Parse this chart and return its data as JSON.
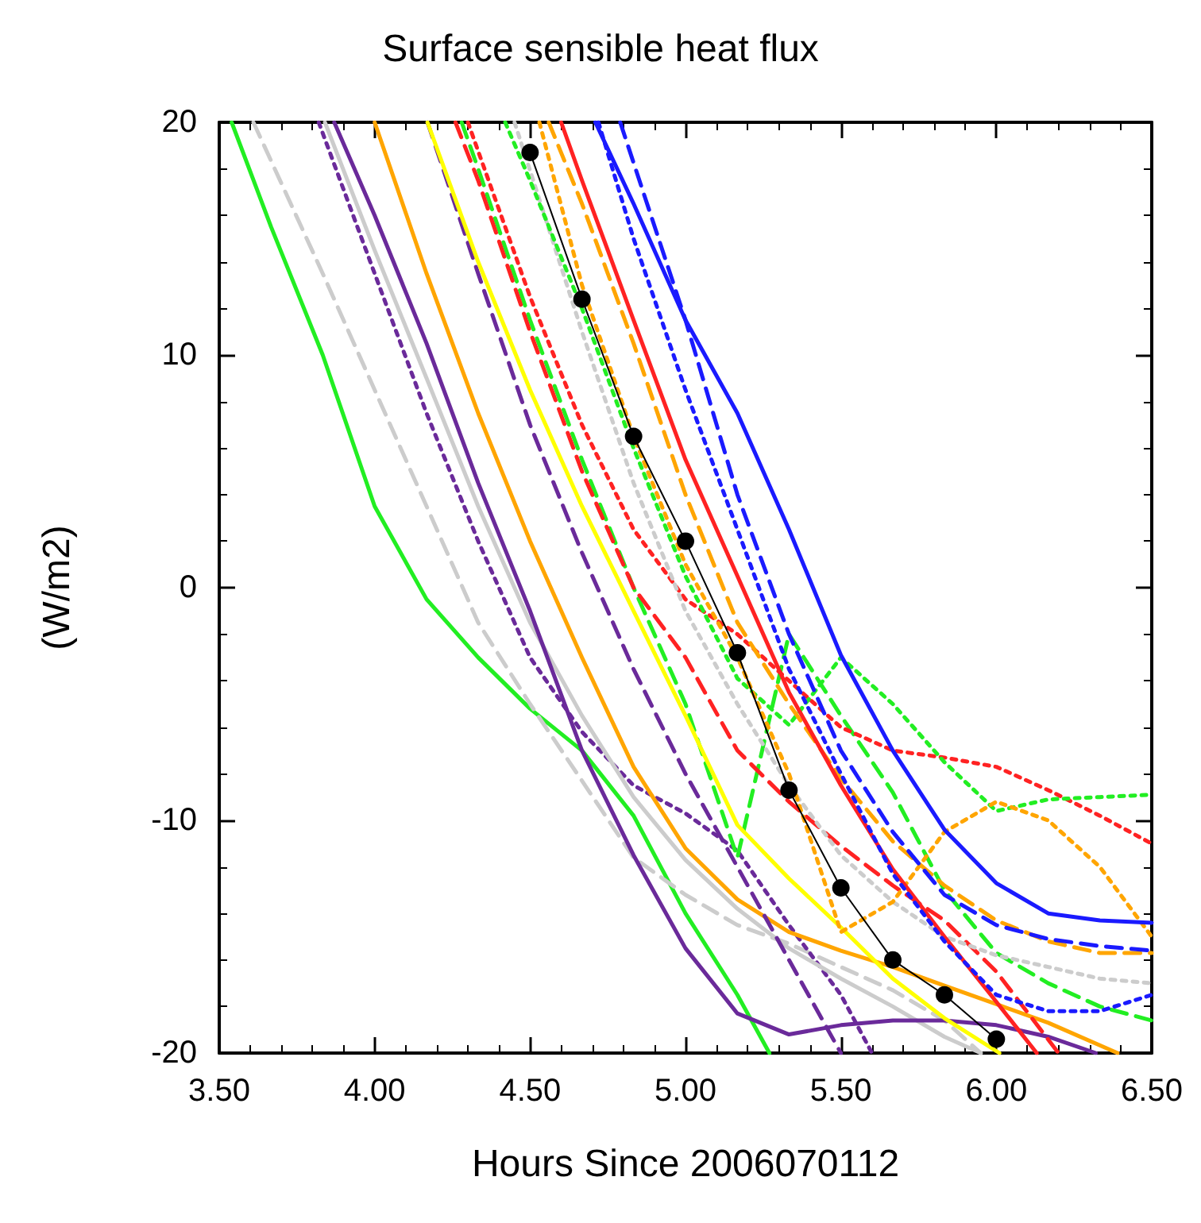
{
  "chart_data": {
    "type": "line",
    "title": "Surface sensible heat flux",
    "xlabel": "Hours Since 2006070112",
    "ylabel": "(W/m2)",
    "xlim": [
      3.5,
      6.5
    ],
    "xticks": [
      {
        "value": 3.5,
        "label": "3.50"
      },
      {
        "value": 4,
        "label": "4.00"
      },
      {
        "value": 4.5,
        "label": "4.50"
      },
      {
        "value": 5,
        "label": "5.00"
      },
      {
        "value": 5.5,
        "label": "5.50"
      },
      {
        "value": 6,
        "label": "6.00"
      },
      {
        "value": 6.5,
        "label": "6.50"
      }
    ],
    "ylim": [
      -20,
      20
    ],
    "yticks": [
      -20,
      -10,
      0,
      10,
      20
    ],
    "grid": false,
    "marker": "none",
    "series": [
      {
        "color": "#22ee22",
        "line_style": "solid",
        "x": [
          3.54,
          3.667,
          3.833,
          4.0,
          4.167,
          4.333,
          4.5,
          4.667,
          4.833,
          5.0,
          5.167,
          5.27
        ],
        "values": [
          20,
          15.5,
          10,
          3.5,
          -0.5,
          -3,
          -5.2,
          -7,
          -9.8,
          -14,
          -17.5,
          -20
        ]
      },
      {
        "color": "#cccccc",
        "line_style": "dashed",
        "x": [
          3.61,
          3.833,
          4.0,
          4.167,
          4.333,
          4.5,
          4.667,
          4.833,
          5.0,
          5.167,
          5.333,
          5.5,
          5.667,
          5.833,
          5.95
        ],
        "values": [
          20,
          13.5,
          8.5,
          3.5,
          -1.5,
          -5,
          -8.3,
          -11.6,
          -13.2,
          -14.5,
          -15.3,
          -16.3,
          -17.3,
          -18.6,
          -20
        ]
      },
      {
        "color": "#6a2a9a",
        "line_style": "dotted",
        "x": [
          3.82,
          4.0,
          4.167,
          4.333,
          4.5,
          4.667,
          4.833,
          5.0,
          5.167,
          5.333,
          5.5,
          5.6
        ],
        "values": [
          20,
          13.5,
          7.5,
          2,
          -3,
          -6.2,
          -8.5,
          -9.7,
          -11.3,
          -14.5,
          -17.5,
          -20
        ]
      },
      {
        "color": "#cccccc",
        "line_style": "solid",
        "x": [
          3.84,
          4.0,
          4.167,
          4.333,
          4.5,
          4.667,
          4.833,
          5.0,
          5.167,
          5.333,
          5.5,
          5.667,
          5.833,
          5.95
        ],
        "values": [
          20,
          14.5,
          9,
          3.5,
          -1.5,
          -5.5,
          -9,
          -11.7,
          -13.8,
          -15.5,
          -16.8,
          -18,
          -19.3,
          -20
        ]
      },
      {
        "color": "#6a2a9a",
        "line_style": "solid",
        "x": [
          3.87,
          4.0,
          4.167,
          4.333,
          4.5,
          4.667,
          4.833,
          5.0,
          5.167,
          5.333,
          5.5,
          5.667,
          5.833,
          6.0,
          6.167,
          6.32
        ],
        "values": [
          20,
          16,
          10.5,
          4.5,
          -1,
          -7,
          -11.5,
          -15.5,
          -18.3,
          -19.2,
          -18.8,
          -18.6,
          -18.6,
          -18.8,
          -19.3,
          -20
        ]
      },
      {
        "color": "#ffa500",
        "line_style": "solid",
        "x": [
          4.0,
          4.167,
          4.333,
          4.5,
          4.667,
          4.833,
          5.0,
          5.167,
          5.333,
          5.5,
          5.667,
          5.833,
          6.0,
          6.167,
          6.39
        ],
        "values": [
          20,
          13.5,
          7.5,
          2,
          -3,
          -7.7,
          -11.2,
          -13.4,
          -14.8,
          -15.6,
          -16.3,
          -17.1,
          -17.9,
          -18.7,
          -20
        ]
      },
      {
        "color": "#6a2a9a",
        "line_style": "dashed",
        "x": [
          4.17,
          4.333,
          4.5,
          4.667,
          4.833,
          5.0,
          5.167,
          5.333,
          5.5
        ],
        "values": [
          20,
          13.5,
          7,
          1.5,
          -3.5,
          -8,
          -12,
          -16,
          -20
        ]
      },
      {
        "color": "#22ee22",
        "line_style": "dashed",
        "x": [
          4.28,
          4.333,
          4.5,
          4.667,
          4.833,
          5.0,
          5.167,
          5.333,
          5.5,
          5.667,
          5.833,
          6.0,
          6.167,
          6.333,
          6.5
        ],
        "values": [
          20,
          18,
          11.5,
          5.5,
          0,
          -5,
          -11.6,
          -2,
          -5.5,
          -8.8,
          -13,
          -15.7,
          -17,
          -18,
          -18.6
        ]
      },
      {
        "color": "#ffff00",
        "line_style": "solid",
        "x": [
          4.17,
          4.333,
          4.5,
          4.667,
          4.833,
          5.0,
          5.167,
          5.333,
          5.5,
          5.667,
          5.833,
          6.01
        ],
        "values": [
          20,
          14,
          8.5,
          3.5,
          -1,
          -5.5,
          -10.2,
          -12.5,
          -14.6,
          -16.8,
          -18.5,
          -20
        ]
      },
      {
        "color": "#ff2222",
        "line_style": "dashed",
        "x": [
          4.26,
          4.333,
          4.5,
          4.667,
          4.833,
          5.0,
          5.167,
          5.333,
          5.5,
          5.667,
          5.833,
          6.0,
          6.2
        ],
        "values": [
          20,
          17.5,
          11,
          5,
          0,
          -3,
          -7,
          -9.2,
          -11.1,
          -12.8,
          -14.3,
          -16.5,
          -20
        ]
      },
      {
        "color": "#ff2222",
        "line_style": "dotted",
        "x": [
          4.3,
          4.5,
          4.667,
          4.833,
          5.0,
          5.167,
          5.333,
          5.5,
          5.667,
          5.833,
          6.0,
          6.167,
          6.333,
          6.5
        ],
        "values": [
          20,
          12.5,
          7,
          2.5,
          -0.5,
          -2,
          -4,
          -6,
          -7,
          -7.3,
          -7.7,
          -8.7,
          -9.8,
          -11
        ]
      },
      {
        "color": "#cccccc",
        "line_style": "dotted",
        "x": [
          4.45,
          4.667,
          4.833,
          5.0,
          5.167,
          5.333,
          5.5,
          5.667,
          5.833,
          6.0,
          6.167,
          6.333,
          6.5
        ],
        "values": [
          20,
          11,
          4.5,
          -1,
          -5,
          -8.5,
          -11.5,
          -13.5,
          -15,
          -15.8,
          -16.3,
          -16.8,
          -17
        ]
      },
      {
        "color": "#22ee22",
        "line_style": "dotted",
        "x": [
          4.42,
          4.5,
          4.667,
          4.833,
          5.0,
          5.167,
          5.333,
          5.5,
          5.667,
          5.833,
          6.0,
          6.167,
          6.333,
          6.5
        ],
        "values": [
          20,
          17.5,
          12,
          6,
          0.5,
          -3.9,
          -5.9,
          -3,
          -5,
          -7.5,
          -9.6,
          -9.1,
          -9,
          -8.9
        ]
      },
      {
        "color": "#ffa500",
        "line_style": "dotted",
        "x": [
          4.53,
          4.667,
          4.833,
          5.0,
          5.167,
          5.333,
          5.5,
          5.667,
          5.833,
          6.0,
          6.167,
          6.333,
          6.5
        ],
        "values": [
          20,
          13,
          6.5,
          1,
          -3,
          -8,
          -14.8,
          -13.5,
          -10.5,
          -9.2,
          -10,
          -12,
          -15
        ]
      },
      {
        "color": "#ffa500",
        "line_style": "dashed",
        "x": [
          4.56,
          4.667,
          4.833,
          5.0,
          5.167,
          5.333,
          5.5,
          5.667,
          5.833,
          6.0,
          6.167,
          6.333,
          6.5
        ],
        "values": [
          20,
          16.5,
          10.5,
          4,
          -1.5,
          -5,
          -8.2,
          -10.9,
          -12.8,
          -14.3,
          -15.2,
          -15.7,
          -15.7
        ]
      },
      {
        "color": "#ff2222",
        "line_style": "solid",
        "x": [
          4.6,
          4.667,
          4.833,
          5.0,
          5.167,
          5.333,
          5.5,
          5.667,
          5.833,
          6.0,
          6.13
        ],
        "values": [
          20,
          17.5,
          11.5,
          5.5,
          0.5,
          -4.5,
          -8.5,
          -12.1,
          -15,
          -17.8,
          -20
        ]
      },
      {
        "color": "#1a1aff",
        "line_style": "dotted",
        "x": [
          4.72,
          4.833,
          5.0,
          5.167,
          5.333,
          5.5,
          5.667,
          5.833,
          6.0,
          6.167,
          6.333,
          6.5
        ],
        "values": [
          20,
          15,
          8.5,
          2.5,
          -3.5,
          -8,
          -12.3,
          -15.2,
          -17.5,
          -18.2,
          -18.2,
          -17.5
        ]
      },
      {
        "color": "#1a1aff",
        "line_style": "dashed",
        "x": [
          4.79,
          5.0,
          5.167,
          5.333,
          5.5,
          5.667,
          5.833,
          6.0,
          6.167,
          6.333,
          6.5
        ],
        "values": [
          20,
          11.5,
          4,
          -2,
          -7,
          -10.5,
          -13.2,
          -14.5,
          -15.1,
          -15.4,
          -15.6
        ]
      },
      {
        "color": "#1a1aff",
        "line_style": "solid",
        "x": [
          4.71,
          4.833,
          5.0,
          5.167,
          5.333,
          5.5,
          5.667,
          5.833,
          6.0,
          6.167,
          6.333,
          6.5
        ],
        "values": [
          20,
          16.5,
          11.5,
          7.5,
          2.5,
          -2.9,
          -7,
          -10.4,
          -12.7,
          -14,
          -14.3,
          -14.4
        ]
      },
      {
        "color": "#000000",
        "line_style": "solid",
        "marker": "circle",
        "x": [
          4.5,
          4.667,
          4.833,
          5.0,
          5.167,
          5.333,
          5.5,
          5.667,
          5.833,
          6.0
        ],
        "values": [
          18.7,
          12.4,
          6.5,
          2.0,
          -2.8,
          -8.7,
          -12.9,
          -16,
          -17.5,
          -19.4
        ]
      }
    ]
  }
}
